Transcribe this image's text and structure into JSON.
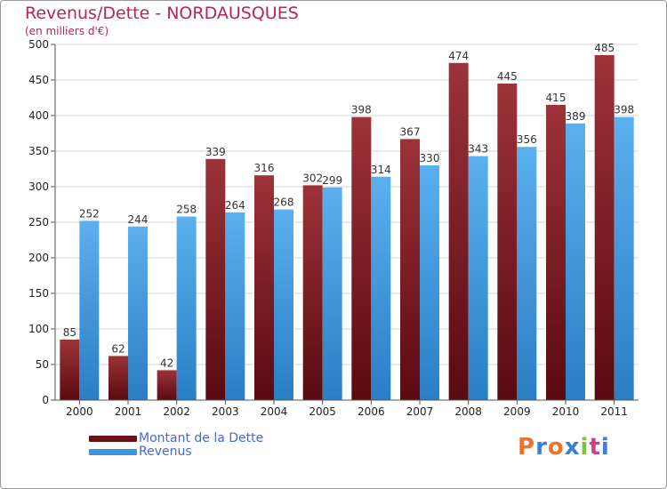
{
  "title": "Revenus/Dette - NORDAUSQUES",
  "subtitle": "(en milliers d'€)",
  "colors": {
    "debt": "#7a1a22",
    "revenue": "#3d96dd",
    "axis_text": "#222222",
    "grid": "#d4d4d4",
    "title": "#b5245f"
  },
  "legend": {
    "debt_label": "Montant de la Dette",
    "revenue_label": "Revenus"
  },
  "logo": {
    "text": "Proxiti"
  },
  "chart_data": {
    "type": "bar",
    "title": "Revenus/Dette - NORDAUSQUES",
    "subtitle": "(en milliers d'€)",
    "xlabel": "",
    "ylabel": "",
    "categories": [
      "2000",
      "2001",
      "2002",
      "2003",
      "2004",
      "2005",
      "2006",
      "2007",
      "2008",
      "2009",
      "2010",
      "2011"
    ],
    "series": [
      {
        "name": "Montant de la Dette",
        "values": [
          85,
          62,
          42,
          339,
          316,
          302,
          398,
          367,
          474,
          445,
          415,
          485
        ]
      },
      {
        "name": "Revenus",
        "values": [
          252,
          244,
          258,
          264,
          268,
          299,
          314,
          330,
          343,
          356,
          389,
          398
        ]
      }
    ],
    "ylim": [
      0,
      500
    ],
    "yticks": [
      0,
      50,
      100,
      150,
      200,
      250,
      300,
      350,
      400,
      450,
      500
    ],
    "grid": true,
    "legend_position": "bottom-left",
    "data_labels": true
  }
}
